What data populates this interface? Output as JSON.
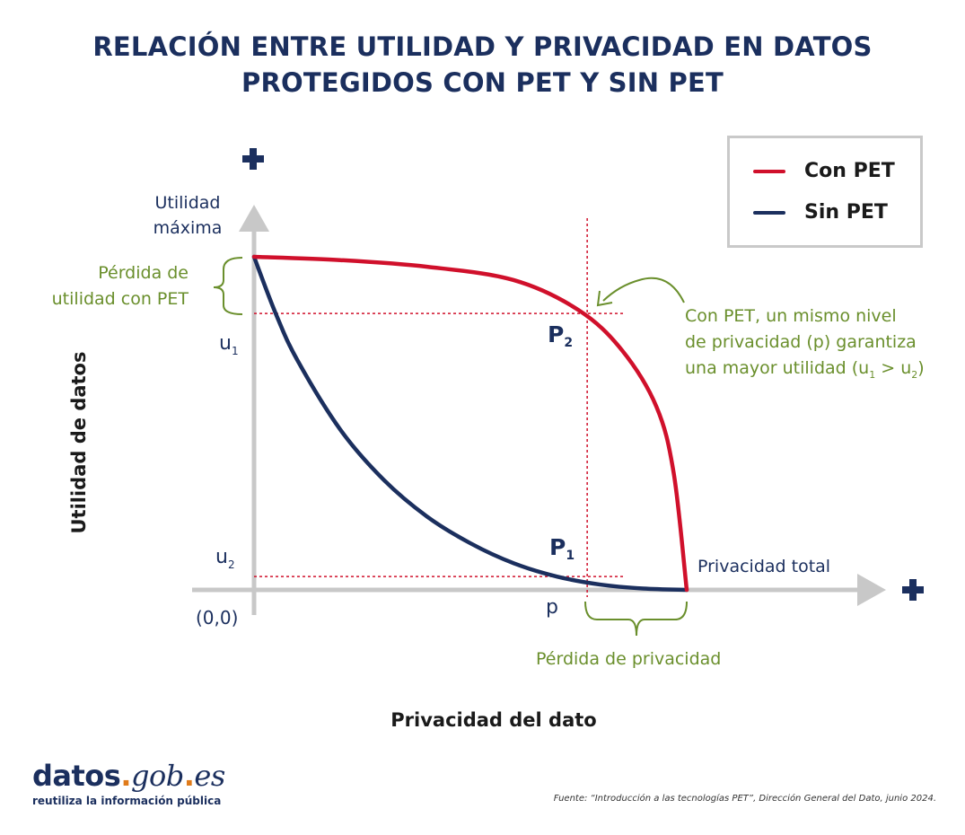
{
  "title_line1": "RELACIÓN ENTRE UTILIDAD Y PRIVACIDAD EN DATOS",
  "title_line2": "PROTEGIDOS CON PET Y SIN PET",
  "axes": {
    "ylabel": "Utilidad de datos",
    "xlabel": "Privacidad del dato",
    "origin": "(0,0)",
    "plus_symbol": "+",
    "y_max_label": "Utilidad máxima",
    "x_max_label": "Privacidad total"
  },
  "legend": {
    "position": "top-right",
    "items": [
      {
        "label": "Con PET",
        "color": "#d0102b"
      },
      {
        "label": "Sin PET",
        "color": "#1b2f5e"
      }
    ]
  },
  "annotations": {
    "loss_utility": "Pérdida de utilidad con PET",
    "loss_privacy": "Pérdida de privacidad",
    "note_line1": "Con PET, un mismo nivel",
    "note_line2": "de privacidad (p) garantiza",
    "note_line3_prefix": "una mayor utilidad (u",
    "note_sub1": "1",
    "note_mid": " > u",
    "note_sub2": "2",
    "note_end": ")"
  },
  "points": {
    "p1": "P",
    "p1_sub": "1",
    "p2": "P",
    "p2_sub": "2",
    "u1": "u",
    "u1_sub": "1",
    "u2": "u",
    "u2_sub": "2",
    "p": "p"
  },
  "chart_data": {
    "type": "line",
    "xlabel": "Privacidad del dato",
    "ylabel": "Utilidad de datos",
    "series": [
      {
        "name": "Con PET",
        "color": "#d0102b",
        "x": [
          0,
          0.2,
          0.4,
          0.6,
          0.75,
          0.85,
          0.93,
          0.97,
          1.0
        ],
        "y": [
          1.0,
          0.99,
          0.97,
          0.93,
          0.84,
          0.72,
          0.55,
          0.35,
          0.0
        ]
      },
      {
        "name": "Sin PET",
        "color": "#1b2f5e",
        "x": [
          0,
          0.05,
          0.1,
          0.2,
          0.3,
          0.4,
          0.5,
          0.6,
          0.7,
          0.8,
          0.9,
          1.0
        ],
        "y": [
          1.0,
          0.83,
          0.69,
          0.48,
          0.33,
          0.22,
          0.14,
          0.08,
          0.04,
          0.016,
          0.004,
          0.0
        ]
      }
    ],
    "p_value": 0.77,
    "u1_value": 0.83,
    "u2_value": 0.04,
    "colors": {
      "guide": "#d0102b",
      "axis": "#c8c8c8",
      "annotation": "#6a8f2c"
    }
  },
  "footer": {
    "logo_main": "datos",
    "logo_dot": ".",
    "logo_gob": "gob",
    "logo_dot2": ".",
    "logo_es": "es",
    "logo_tagline": "reutiliza la información pública",
    "source": "Fuente: “Introducción a las tecnologías PET”, Dirección General del Dato, junio 2024."
  }
}
